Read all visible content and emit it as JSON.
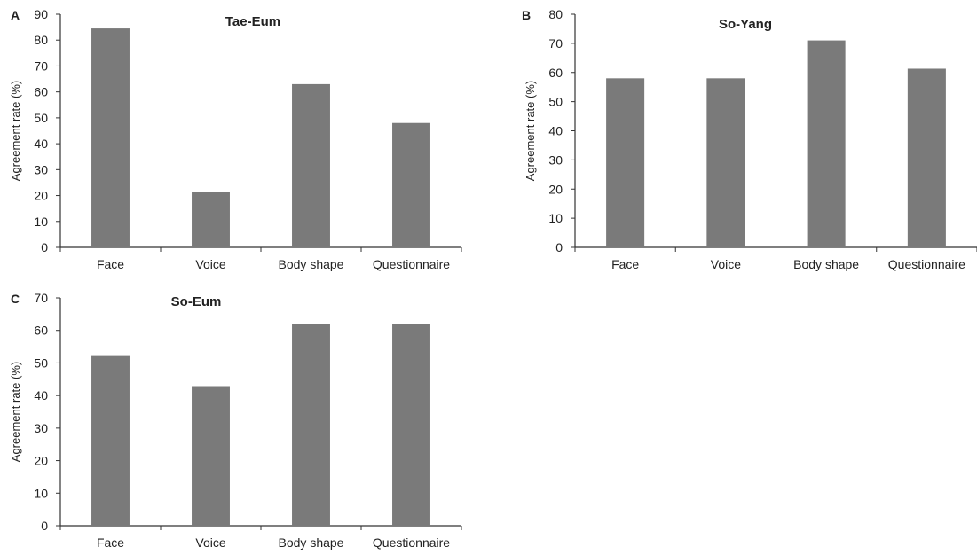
{
  "colors": {
    "bar": "#7a7a7a",
    "axis": "#333333",
    "text": "#222222"
  },
  "chart_data": [
    {
      "type": "bar",
      "panel_label": "A",
      "title": "Tae-Eum",
      "ylabel": "Agreement rate (%)",
      "xlabel": "",
      "categories": [
        "Face",
        "Voice",
        "Body shape",
        "Questionnaire"
      ],
      "values": [
        84.5,
        21.5,
        63,
        48
      ],
      "ylim": [
        0,
        90
      ],
      "yticks": [
        0,
        10,
        20,
        30,
        40,
        50,
        60,
        70,
        80,
        90
      ],
      "grid": false,
      "legend": "none"
    },
    {
      "type": "bar",
      "panel_label": "B",
      "title": "So-Yang",
      "ylabel": "Agreement rate (%)",
      "xlabel": "",
      "categories": [
        "Face",
        "Voice",
        "Body shape",
        "Questionnaire"
      ],
      "values": [
        58,
        58,
        71,
        61.3
      ],
      "ylim": [
        0,
        80
      ],
      "yticks": [
        0,
        10,
        20,
        30,
        40,
        50,
        60,
        70,
        80
      ],
      "grid": false,
      "legend": "none"
    },
    {
      "type": "bar",
      "panel_label": "C",
      "title": "So-Eum",
      "ylabel": "Agreement rate (%)",
      "xlabel": "",
      "categories": [
        "Face",
        "Voice",
        "Body shape",
        "Questionnaire"
      ],
      "values": [
        52.4,
        42.9,
        61.9,
        61.9
      ],
      "ylim": [
        0,
        70
      ],
      "yticks": [
        0,
        10,
        20,
        30,
        40,
        50,
        60,
        70
      ],
      "grid": false,
      "legend": "none"
    }
  ]
}
